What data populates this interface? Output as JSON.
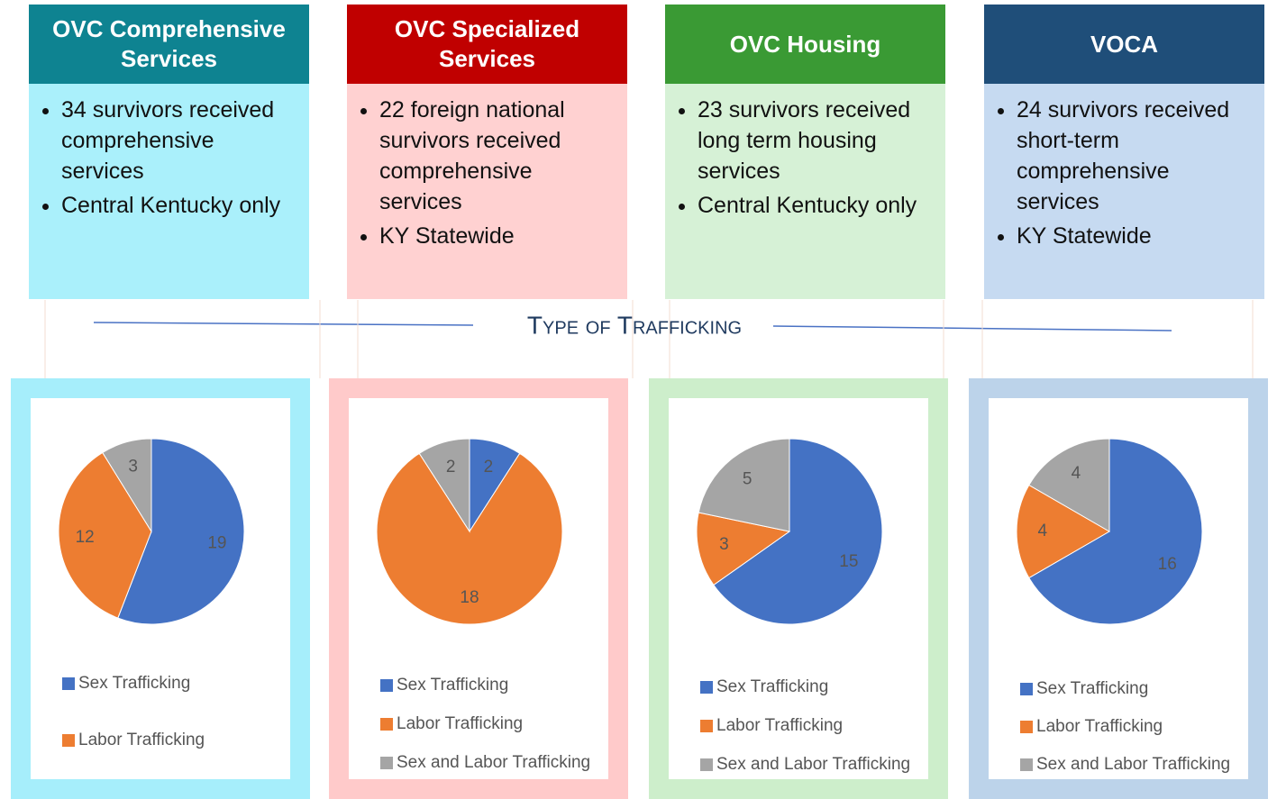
{
  "columns": [
    {
      "title": "OVC Comprehensive Services",
      "bullets": [
        "34 survivors received comprehensive services",
        "Central Kentucky only"
      ]
    },
    {
      "title": "OVC Specialized Services",
      "bullets": [
        "22 foreign national survivors received comprehensive services",
        "KY Statewide"
      ]
    },
    {
      "title": "OVC Housing",
      "bullets": [
        "23 survivors received long term housing services",
        "Central Kentucky only"
      ]
    },
    {
      "title": "VOCA",
      "bullets": [
        "24 survivors received short-term comprehensive services",
        "KY Statewide"
      ]
    }
  ],
  "section_title": "Type of Trafficking",
  "chart_data": [
    {
      "type": "pie",
      "categories": [
        "Sex Trafficking",
        "Labor Trafficking",
        null
      ],
      "values": [
        19,
        12,
        3
      ],
      "colors": [
        "#4472c4",
        "#ed7d31",
        "#a5a5a5"
      ]
    },
    {
      "type": "pie",
      "categories": [
        "Sex Trafficking",
        "Labor Trafficking",
        "Sex and Labor Trafficking"
      ],
      "values": [
        2,
        18,
        2
      ],
      "colors": [
        "#4472c4",
        "#ed7d31",
        "#a5a5a5"
      ]
    },
    {
      "type": "pie",
      "categories": [
        "Sex Trafficking",
        "Labor Trafficking",
        "Sex and Labor Trafficking"
      ],
      "values": [
        15,
        3,
        5
      ],
      "colors": [
        "#4472c4",
        "#ed7d31",
        "#a5a5a5"
      ]
    },
    {
      "type": "pie",
      "categories": [
        "Sex Trafficking",
        "Labor Trafficking",
        "Sex and Labor Trafficking"
      ],
      "values": [
        16,
        4,
        4
      ],
      "colors": [
        "#4472c4",
        "#ed7d31",
        "#a5a5a5"
      ]
    }
  ]
}
